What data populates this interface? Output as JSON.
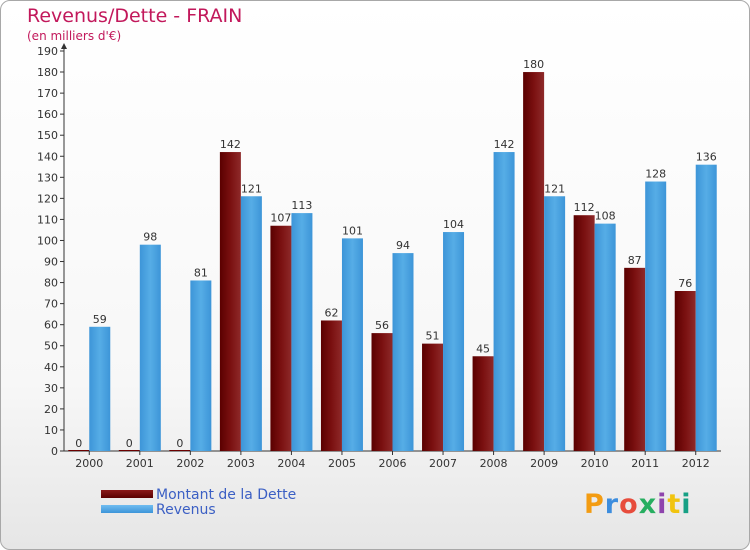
{
  "title": "Revenus/Dette - FRAIN",
  "subtitle": "(en milliers d'€)",
  "brand": "Proxiti",
  "brand_colors": [
    "#f39c12",
    "#3c8dde",
    "#e74c3c",
    "#27ae60",
    "#8e44ad",
    "#f1c40f",
    "#16a085"
  ],
  "colors": {
    "dette": "#6b0000",
    "revenus": "#4da3e0",
    "title": "#c2185b",
    "legend_text": "#3b5fc4"
  },
  "legend": [
    {
      "label": "Montant de la Dette",
      "color": "#6b0000"
    },
    {
      "label": "Revenus",
      "color": "#4da3e0"
    }
  ],
  "chart_data": {
    "type": "bar",
    "categories": [
      "2000",
      "2001",
      "2002",
      "2003",
      "2004",
      "2005",
      "2006",
      "2007",
      "2008",
      "2009",
      "2010",
      "2011",
      "2012"
    ],
    "series": [
      {
        "name": "Montant de la Dette",
        "values": [
          0,
          0,
          0,
          142,
          107,
          62,
          56,
          51,
          45,
          180,
          112,
          87,
          76
        ]
      },
      {
        "name": "Revenus",
        "values": [
          59,
          98,
          81,
          121,
          113,
          101,
          94,
          104,
          142,
          121,
          108,
          128,
          136
        ]
      }
    ],
    "title": "Revenus/Dette - FRAIN",
    "subtitle": "(en milliers d'€)",
    "ylim": [
      0,
      190
    ],
    "yticks": [
      0,
      10,
      20,
      30,
      40,
      50,
      60,
      70,
      80,
      90,
      100,
      110,
      120,
      130,
      140,
      150,
      160,
      170,
      180,
      190
    ],
    "grid": false,
    "legend_position": "bottom-left"
  }
}
